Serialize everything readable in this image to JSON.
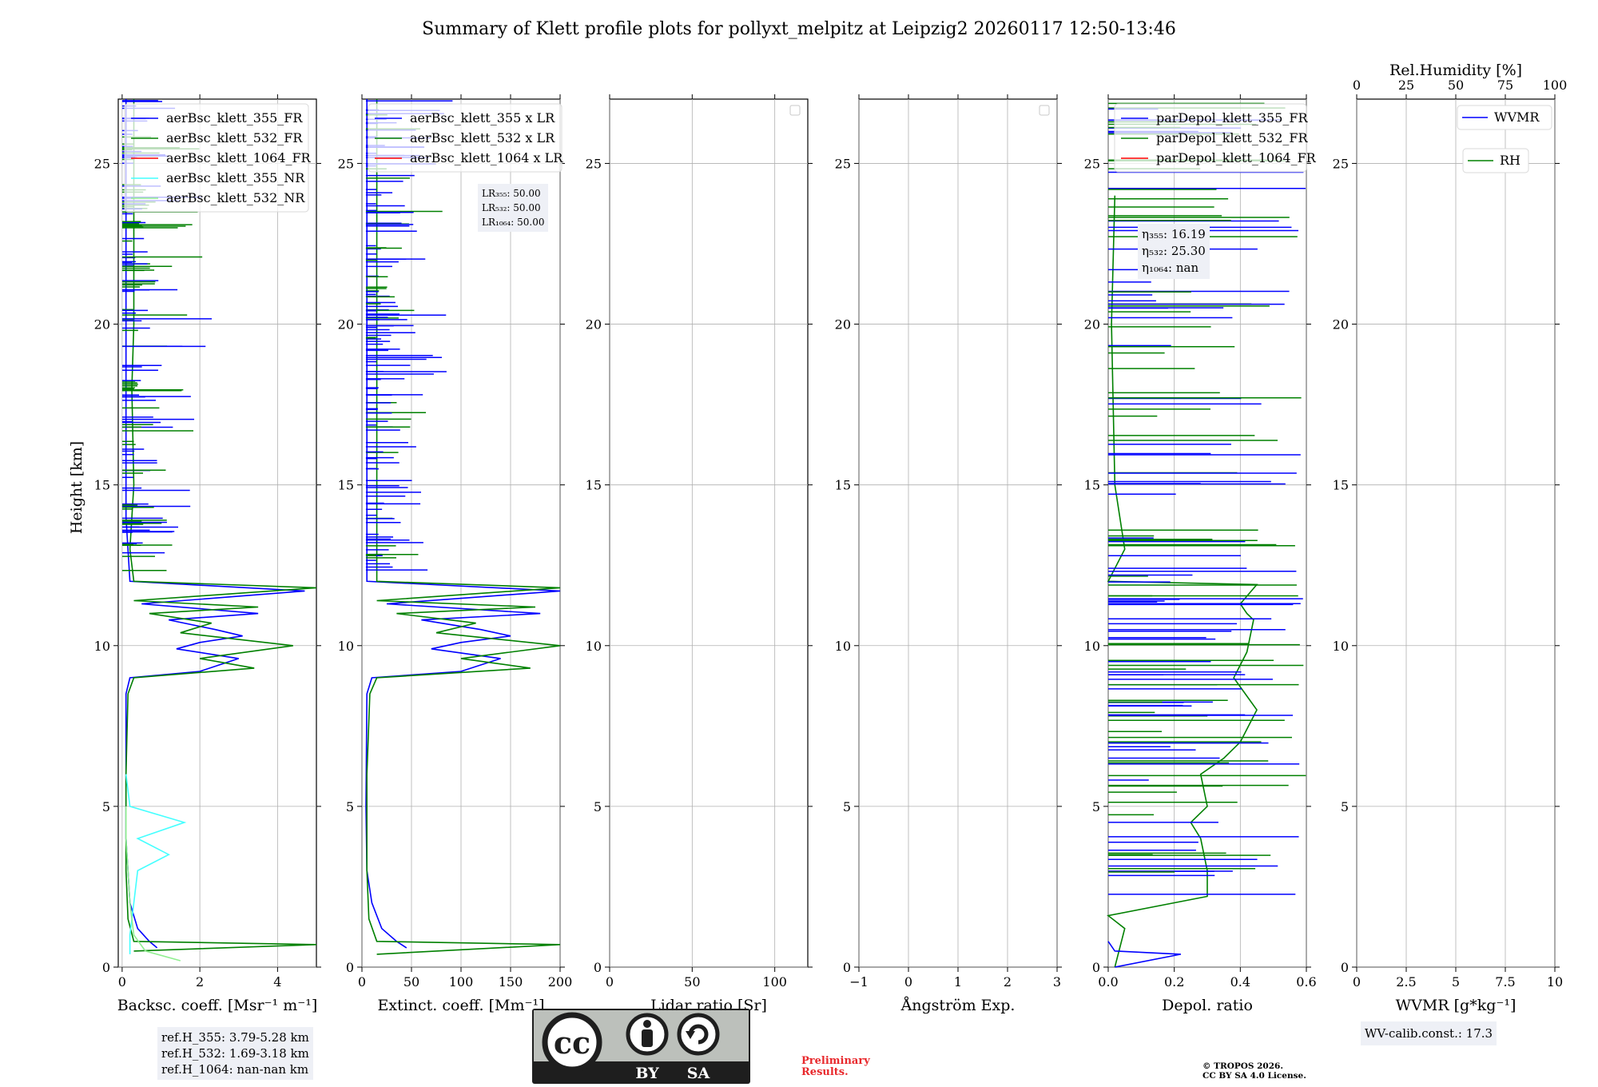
{
  "title": "Summary of Klett profile plots for pollyxt_melpitz at Leipzig2 20260117 12:50-13:46",
  "colors": {
    "c355": "#0000ff",
    "c532": "#008000",
    "c1064": "#ff0000",
    "c355nr": "#44ffff",
    "c532nr": "#90ee90",
    "grid": "#b0b0b0"
  },
  "chart_data": [
    {
      "type": "line",
      "id": "backscatter",
      "xlabel": "Backsc. coeff. [Msr⁻¹ m⁻¹]",
      "ylabel": "Height [km]",
      "xlim": [
        -0.1,
        5.0
      ],
      "ylim": [
        0,
        27
      ],
      "xticks": [
        0,
        2,
        4
      ],
      "yticks": [
        0,
        5,
        10,
        15,
        20,
        25
      ],
      "legend": [
        "aerBsc_klett_355_FR",
        "aerBsc_klett_532_FR",
        "aerBsc_klett_1064_FR",
        "aerBsc_klett_355_NR",
        "aerBsc_klett_532_NR"
      ],
      "series": [
        {
          "name": "aerBsc_klett_355_FR",
          "color": "c355",
          "points": [
            [
              0.9,
              0.6
            ],
            [
              0.7,
              0.8
            ],
            [
              0.4,
              1.2
            ],
            [
              0.2,
              2.0
            ],
            [
              0.15,
              3.0
            ],
            [
              0.1,
              4.0
            ],
            [
              0.1,
              5.0
            ],
            [
              0.1,
              6.0
            ],
            [
              0.1,
              8.5
            ],
            [
              0.2,
              9.0
            ],
            [
              2.0,
              9.2
            ],
            [
              3.0,
              9.6
            ],
            [
              1.4,
              9.9
            ],
            [
              2.0,
              10.1
            ],
            [
              3.1,
              10.3
            ],
            [
              2.4,
              10.5
            ],
            [
              1.2,
              10.8
            ],
            [
              3.5,
              11.0
            ],
            [
              0.5,
              11.3
            ],
            [
              4.7,
              11.7
            ],
            [
              0.2,
              12.0
            ],
            [
              0.1,
              14.0
            ],
            [
              0.1,
              20.0
            ],
            [
              0.1,
              24.0
            ],
            [
              0.1,
              27.0
            ]
          ]
        },
        {
          "name": "aerBsc_klett_532_FR",
          "color": "c532",
          "points": [
            [
              0.3,
              0.5
            ],
            [
              5.0,
              0.7
            ],
            [
              0.3,
              0.8
            ],
            [
              0.15,
              1.5
            ],
            [
              0.1,
              3.0
            ],
            [
              0.1,
              6.0
            ],
            [
              0.15,
              8.5
            ],
            [
              0.3,
              9.0
            ],
            [
              3.4,
              9.3
            ],
            [
              2.0,
              9.6
            ],
            [
              4.4,
              10.0
            ],
            [
              1.5,
              10.4
            ],
            [
              2.3,
              10.7
            ],
            [
              0.7,
              11.0
            ],
            [
              3.5,
              11.2
            ],
            [
              0.3,
              11.4
            ],
            [
              5.0,
              11.8
            ],
            [
              0.3,
              12.0
            ],
            [
              0.2,
              13.0
            ],
            [
              0.3,
              15.0
            ],
            [
              0.25,
              18.0
            ],
            [
              0.3,
              20.0
            ],
            [
              0.3,
              22.0
            ],
            [
              0.3,
              24.0
            ],
            [
              0.3,
              27.0
            ]
          ]
        },
        {
          "name": "aerBsc_klett_355_NR",
          "color": "c355nr",
          "points": [
            [
              0.2,
              0.4
            ],
            [
              0.2,
              1.0
            ],
            [
              0.3,
              2.0
            ],
            [
              0.4,
              3.0
            ],
            [
              1.2,
              3.5
            ],
            [
              0.4,
              4.0
            ],
            [
              1.6,
              4.5
            ],
            [
              0.2,
              5.0
            ],
            [
              0.1,
              6.0
            ]
          ]
        },
        {
          "name": "aerBsc_klett_532_NR",
          "color": "c532nr",
          "points": [
            [
              1.5,
              0.2
            ],
            [
              0.6,
              0.5
            ],
            [
              0.3,
              1.0
            ],
            [
              0.2,
              2.0
            ],
            [
              0.15,
              3.0
            ],
            [
              0.1,
              4.0
            ],
            [
              0.1,
              5.0
            ]
          ]
        }
      ]
    },
    {
      "type": "line",
      "id": "extinction",
      "xlabel": "Extinct. coeff. [Mm⁻¹]",
      "ylabel": "",
      "xlim": [
        0,
        200
      ],
      "ylim": [
        0,
        27
      ],
      "xticks": [
        0,
        50,
        100,
        150,
        200
      ],
      "yticks": [
        0,
        5,
        10,
        15,
        20,
        25
      ],
      "legend": [
        "aerBsc_klett_355 x LR",
        "aerBsc_klett_532 x LR",
        "aerBsc_klett_1064 x LR"
      ],
      "series": [
        {
          "name": "aerBsc_klett_355 x LR",
          "color": "c355",
          "points": [
            [
              45,
              0.6
            ],
            [
              35,
              0.8
            ],
            [
              20,
              1.2
            ],
            [
              10,
              2.0
            ],
            [
              5,
              3.0
            ],
            [
              4,
              5.0
            ],
            [
              5,
              8.5
            ],
            [
              10,
              9.0
            ],
            [
              100,
              9.2
            ],
            [
              140,
              9.6
            ],
            [
              70,
              9.9
            ],
            [
              100,
              10.1
            ],
            [
              150,
              10.3
            ],
            [
              120,
              10.5
            ],
            [
              60,
              10.8
            ],
            [
              180,
              11.0
            ],
            [
              25,
              11.3
            ],
            [
              200,
              11.7
            ],
            [
              5,
              12.0
            ],
            [
              5,
              27.0
            ]
          ]
        },
        {
          "name": "aerBsc_klett_532 x LR",
          "color": "c532",
          "points": [
            [
              15,
              0.4
            ],
            [
              200,
              0.7
            ],
            [
              15,
              0.8
            ],
            [
              7,
              1.5
            ],
            [
              5,
              3.0
            ],
            [
              5,
              6.0
            ],
            [
              8,
              8.5
            ],
            [
              15,
              9.0
            ],
            [
              170,
              9.3
            ],
            [
              100,
              9.6
            ],
            [
              200,
              10.0
            ],
            [
              75,
              10.4
            ],
            [
              115,
              10.7
            ],
            [
              35,
              11.0
            ],
            [
              175,
              11.2
            ],
            [
              15,
              11.4
            ],
            [
              200,
              11.8
            ],
            [
              15,
              12.0
            ],
            [
              15,
              27.0
            ]
          ]
        }
      ]
    },
    {
      "type": "line",
      "id": "lidar-ratio",
      "xlabel": "Lidar ratio [Sr]",
      "xlim": [
        0,
        120
      ],
      "ylim": [
        0,
        27
      ],
      "xticks": [
        0,
        50,
        100
      ],
      "yticks": [
        0,
        5,
        10,
        15,
        20,
        25
      ],
      "series": []
    },
    {
      "type": "line",
      "id": "angstrom",
      "xlabel": "Ångström Exp.",
      "xlim": [
        -1,
        3
      ],
      "ylim": [
        0,
        27
      ],
      "xticks": [
        -1,
        0,
        1,
        2,
        3
      ],
      "yticks": [
        0,
        5,
        10,
        15,
        20,
        25
      ],
      "series": []
    },
    {
      "type": "line",
      "id": "depol",
      "xlabel": "Depol. ratio",
      "xlim": [
        0,
        0.6
      ],
      "ylim": [
        0,
        27
      ],
      "xticks": [
        0.0,
        0.2,
        0.4,
        0.6
      ],
      "yticks": [
        0,
        5,
        10,
        15,
        20,
        25
      ],
      "legend": [
        "parDepol_klett_355_FR",
        "parDepol_klett_532_FR",
        "parDepol_klett_1064_FR"
      ],
      "series": [
        {
          "name": "parDepol_klett_532_FR",
          "color": "c532",
          "points": [
            [
              0.02,
              0.0
            ],
            [
              0.05,
              1.2
            ],
            [
              0.0,
              1.6
            ],
            [
              0.3,
              2.2
            ],
            [
              0.3,
              3.0
            ],
            [
              0.28,
              4.0
            ],
            [
              0.25,
              4.5
            ],
            [
              0.3,
              5.0
            ],
            [
              0.28,
              6.0
            ],
            [
              0.35,
              6.5
            ],
            [
              0.4,
              7.0
            ],
            [
              0.45,
              8.0
            ],
            [
              0.38,
              9.0
            ],
            [
              0.42,
              9.8
            ],
            [
              0.44,
              10.8
            ],
            [
              0.42,
              11.0
            ],
            [
              0.4,
              11.3
            ],
            [
              0.45,
              11.9
            ],
            [
              0.0,
              12.0
            ],
            [
              0.05,
              13.0
            ],
            [
              0.02,
              15.0
            ],
            [
              0.01,
              20.0
            ],
            [
              0.02,
              24.0
            ]
          ]
        },
        {
          "name": "parDepol_klett_355_FR",
          "color": "c355",
          "points": [
            [
              0.02,
              0.0
            ],
            [
              0.22,
              0.4
            ],
            [
              0.02,
              0.5
            ],
            [
              0.0,
              0.8
            ]
          ]
        }
      ]
    },
    {
      "type": "line",
      "id": "wvmr",
      "xlabel": "WVMR [g*kg⁻¹]",
      "xlim": [
        0,
        10
      ],
      "ylim": [
        0,
        27
      ],
      "xticks": [
        0.0,
        2.5,
        5.0,
        7.5,
        10.0
      ],
      "yticks": [
        0,
        5,
        10,
        15,
        20,
        25
      ],
      "top_axis": {
        "label": "Rel.Humidity [%]",
        "xlim": [
          0,
          100
        ],
        "xticks": [
          0,
          25,
          50,
          75,
          100
        ]
      },
      "legend": [
        "WVMR",
        "RH"
      ],
      "series": []
    }
  ],
  "annotations": {
    "lr": {
      "line1": "LR₃₅₅: 50.00",
      "line2": "LR₅₃₂: 50.00",
      "line3": "LR₁₀₆₄: 50.00"
    },
    "eta": {
      "line1": "η₃₅₅: 16.19",
      "line2": "η₅₃₂: 25.30",
      "line3": "η₁₀₆₄: nan"
    },
    "refh": {
      "line1": "ref.H_355: 3.79-5.28 km",
      "line2": "ref.H_532: 1.69-3.18 km",
      "line3": "ref.H_1064: nan-nan km"
    },
    "wvcalib": "WV-calib.const.: 17.3",
    "preliminary": {
      "line1": "Preliminary",
      "line2": "Results."
    },
    "copyright": {
      "line1": "© TROPOS 2026.",
      "line2": "CC BY SA 4.0 License."
    }
  },
  "license_badge": {
    "cc": "cc",
    "by": "BY",
    "sa": "SA"
  }
}
